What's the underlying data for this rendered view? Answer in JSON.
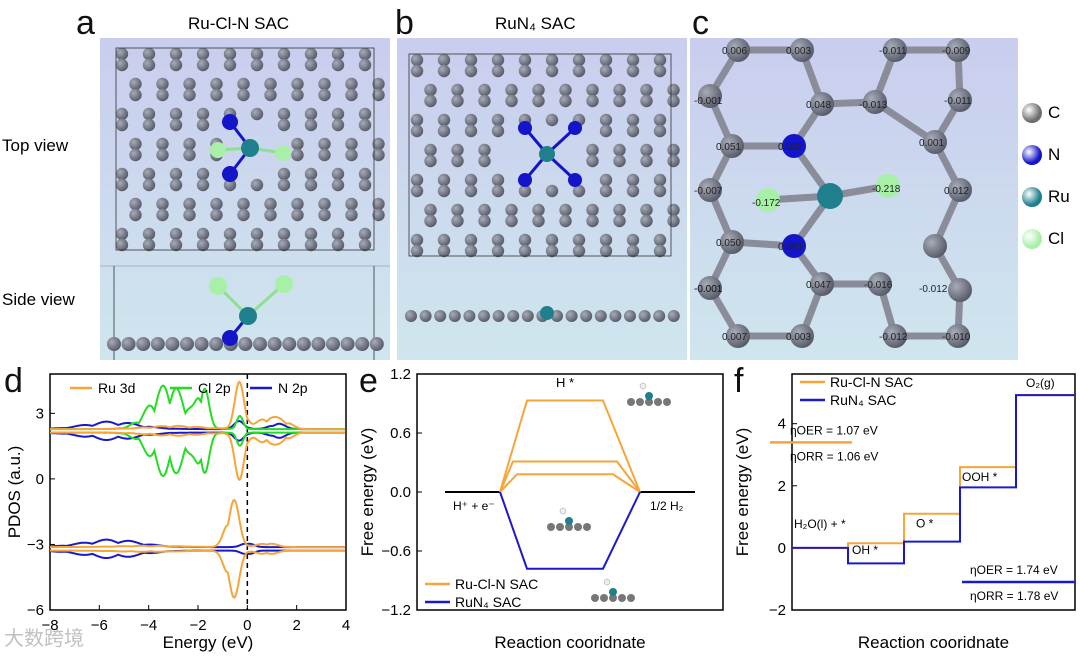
{
  "panels": {
    "a": {
      "letter": "a",
      "title": "Ru-Cl-N SAC",
      "top_view": "Top view",
      "side_view": "Side view"
    },
    "b": {
      "letter": "b",
      "title": "RuN₄ SAC"
    },
    "c": {
      "letter": "c",
      "charges": [
        "0.006",
        "0.003",
        "-0.011",
        "-0.009",
        "-0.001",
        "0.048",
        "-0.013",
        "-0.011",
        "0.051",
        "0.082",
        "0.001",
        "-0.007",
        "-0.172",
        "-0.218",
        "0.012",
        "0.050",
        "0.091",
        "-0.001",
        "-0.001",
        "0.047",
        "-0.016",
        "-0.012",
        "0.007",
        "0.003",
        "-0.012",
        "-0.010"
      ]
    },
    "legend": [
      {
        "label": "C",
        "color": "#6e6e6e"
      },
      {
        "label": "N",
        "color": "#1414c8"
      },
      {
        "label": "Ru",
        "color": "#1f7f8c"
      },
      {
        "label": "Cl",
        "color": "#a8f0a8"
      }
    ],
    "d": {
      "letter": "d"
    },
    "e": {
      "letter": "e"
    },
    "f": {
      "letter": "f"
    }
  },
  "watermark": "大数跨境",
  "chart_data": [
    {
      "type": "line",
      "panel": "d",
      "xlabel": "Energy (eV)",
      "ylabel": "PDOS (a.u.)",
      "xlim": [
        -8,
        4
      ],
      "ylim": [
        -6,
        4.8
      ],
      "xticks": [
        -8,
        -6,
        -4,
        -2,
        0,
        2,
        4
      ],
      "yticks": [
        -6,
        -3,
        0,
        3
      ],
      "legend": [
        "Ru 3d",
        "Cl 2p",
        "N 2p"
      ],
      "colors": {
        "Ru 3d": "#f5a53a",
        "Cl 2p": "#22dd22",
        "N 2p": "#1a1acc"
      },
      "baselines": [
        2.2,
        -3.2
      ],
      "fermi_level": 0
    },
    {
      "type": "line",
      "panel": "e",
      "xlabel": "Reaction cooridnate",
      "ylabel": "Free energy (eV)",
      "ylim": [
        -1.2,
        1.2
      ],
      "yticks": [
        -1.2,
        -0.6,
        0.0,
        0.6,
        1.2
      ],
      "labels": {
        "left": "H⁺ + e⁻",
        "right": "1/2 H₂",
        "top": "H *"
      },
      "series": [
        {
          "name": "Ru-Cl-N SAC",
          "levels": [
            0.93,
            0.31,
            0.18
          ]
        },
        {
          "name": "RuN₄ SAC",
          "levels": [
            -0.78
          ]
        }
      ]
    },
    {
      "type": "line",
      "panel": "f",
      "xlabel": "Reaction cooridnate",
      "ylabel": "Free energy (eV)",
      "ylim": [
        -2,
        5.6
      ],
      "yticks": [
        -2,
        0,
        2,
        4
      ],
      "steps": [
        "H₂O(l) + *",
        "OH *",
        "O *",
        "OOH *",
        "O₂(g)"
      ],
      "series": [
        {
          "name": "Ru-Cl-N SAC",
          "values": [
            0,
            0.15,
            1.1,
            2.6,
            4.92
          ]
        },
        {
          "name": "RuN₄ SAC",
          "values": [
            0,
            -0.5,
            0.2,
            1.95,
            4.92
          ]
        }
      ],
      "annotations": {
        "clN_oer": "ηOER = 1.07 eV",
        "clN_orr": "ηORR = 1.06 eV",
        "n4_oer": "ηOER = 1.74 eV",
        "n4_orr": "ηORR = 1.78 eV"
      }
    }
  ]
}
